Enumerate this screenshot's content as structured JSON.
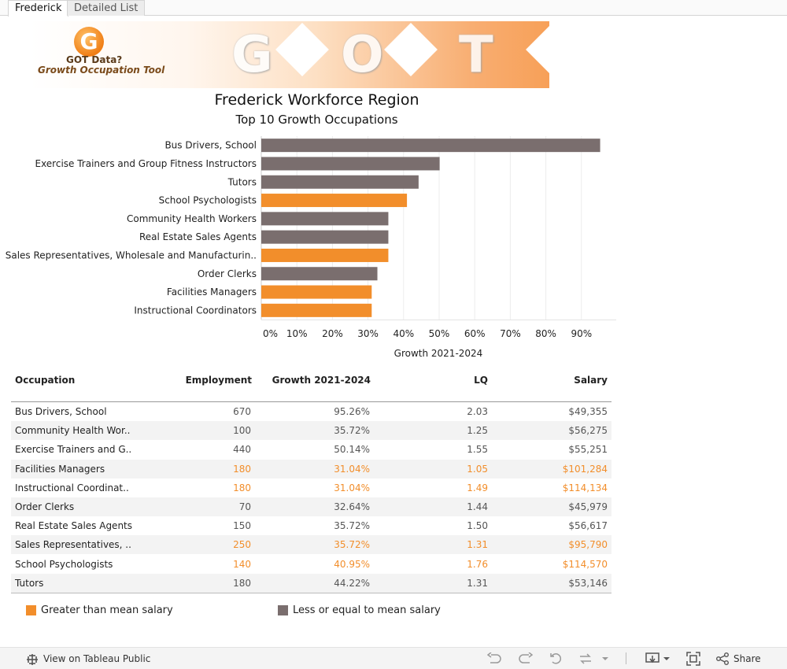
{
  "tabs": [
    {
      "label": "Frederick",
      "active": true
    },
    {
      "label": "Detailed List",
      "active": false
    }
  ],
  "banner": {
    "logo_letter": "G",
    "logo_line1": "GOT Data?",
    "logo_line2": "Growth Occupation Tool",
    "big_letters": [
      "G",
      "O",
      "T"
    ]
  },
  "title": "Frederick Workforce Region",
  "subtitle": "Top 10 Growth Occupations",
  "colors": {
    "above_mean": "#f28e2b",
    "below_mean": "#7a6e6e"
  },
  "chart_data": {
    "type": "bar",
    "orientation": "horizontal",
    "categories": [
      "Bus Drivers, School",
      "Exercise Trainers and Group Fitness Instructors",
      "Tutors",
      "School Psychologists",
      "Community Health Workers",
      "Real Estate Sales Agents",
      "Sales Representatives, Wholesale and Manufacturin..",
      "Order Clerks",
      "Facilities Managers",
      "Instructional Coordinators"
    ],
    "values": [
      95.26,
      50.14,
      44.22,
      40.95,
      35.72,
      35.72,
      35.72,
      32.64,
      31.04,
      31.04
    ],
    "greater_than_mean": [
      false,
      false,
      false,
      true,
      false,
      false,
      true,
      false,
      true,
      true
    ],
    "xlabel": "Growth 2021-2024",
    "xlim": [
      0,
      100
    ],
    "xticks": [
      0,
      10,
      20,
      30,
      40,
      50,
      60,
      70,
      80,
      90
    ],
    "xtick_labels": [
      "0%",
      "10%",
      "20%",
      "30%",
      "40%",
      "50%",
      "60%",
      "70%",
      "80%",
      "90%"
    ],
    "grid": true
  },
  "table": {
    "headers": {
      "occupation": "Occupation",
      "employment": "Employment",
      "growth": "Growth 2021-2024",
      "lq": "LQ",
      "salary": "Salary"
    },
    "rows": [
      {
        "occupation": "Bus Drivers, School",
        "employment": "670",
        "growth": "95.26%",
        "lq": "2.03",
        "salary": "$49,355",
        "above_mean": false
      },
      {
        "occupation": "Community Health Wor..",
        "employment": "100",
        "growth": "35.72%",
        "lq": "1.25",
        "salary": "$56,275",
        "above_mean": false
      },
      {
        "occupation": "Exercise Trainers and G..",
        "employment": "440",
        "growth": "50.14%",
        "lq": "1.55",
        "salary": "$55,251",
        "above_mean": false
      },
      {
        "occupation": "Facilities Managers",
        "employment": "180",
        "growth": "31.04%",
        "lq": "1.05",
        "salary": "$101,284",
        "above_mean": true
      },
      {
        "occupation": "Instructional Coordinat..",
        "employment": "180",
        "growth": "31.04%",
        "lq": "1.49",
        "salary": "$114,134",
        "above_mean": true
      },
      {
        "occupation": "Order Clerks",
        "employment": "70",
        "growth": "32.64%",
        "lq": "1.44",
        "salary": "$45,979",
        "above_mean": false
      },
      {
        "occupation": "Real Estate Sales Agents",
        "employment": "150",
        "growth": "35.72%",
        "lq": "1.50",
        "salary": "$56,617",
        "above_mean": false
      },
      {
        "occupation": "Sales Representatives, ..",
        "employment": "250",
        "growth": "35.72%",
        "lq": "1.31",
        "salary": "$95,790",
        "above_mean": true
      },
      {
        "occupation": "School Psychologists",
        "employment": "140",
        "growth": "40.95%",
        "lq": "1.76",
        "salary": "$114,570",
        "above_mean": true
      },
      {
        "occupation": "Tutors",
        "employment": "180",
        "growth": "44.22%",
        "lq": "1.31",
        "salary": "$53,146",
        "above_mean": false
      }
    ]
  },
  "legend": {
    "above": "Greater than mean salary",
    "below": "Less or equal to mean salary"
  },
  "footer": {
    "view_label": "View on Tableau Public",
    "share_label": "Share",
    "icons": [
      "tableau-icon",
      "undo-icon",
      "redo-icon",
      "revert-icon",
      "refresh-icon",
      "pause-icon",
      "download-icon",
      "fullscreen-icon",
      "share-icon"
    ]
  }
}
